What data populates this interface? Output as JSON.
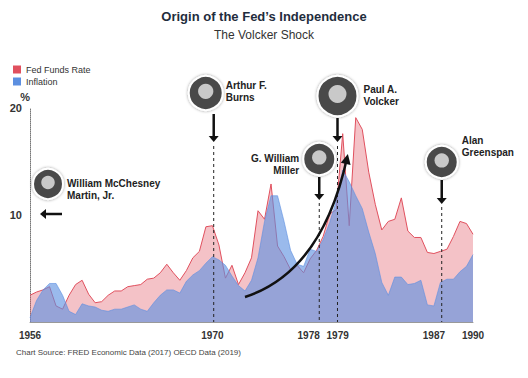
{
  "chart_data": {
    "type": "area",
    "title": "Origin of the Fed’s Independence",
    "subtitle": "The Volcker Shock",
    "ylabel": "%",
    "source": "Chart Source: FRED Economic Data (2017) OECD Data (2019)",
    "x": [
      1956,
      1956.5,
      1957,
      1957.5,
      1958,
      1958.5,
      1959,
      1959.5,
      1960,
      1960.5,
      1961,
      1961.5,
      1962,
      1962.5,
      1963,
      1963.5,
      1964,
      1964.5,
      1965,
      1965.5,
      1966,
      1966.5,
      1967,
      1967.5,
      1968,
      1968.5,
      1969,
      1969.5,
      1970,
      1970.5,
      1971,
      1971.5,
      1972,
      1972.5,
      1973,
      1973.5,
      1974,
      1974.5,
      1975,
      1975.5,
      1976,
      1976.5,
      1977,
      1977.5,
      1978,
      1978.5,
      1979,
      1979.5,
      1980,
      1980.5,
      1981,
      1981.5,
      1982,
      1982.5,
      1983,
      1983.5,
      1984,
      1984.5,
      1985,
      1985.5,
      1986,
      1986.5,
      1987,
      1987.5,
      1988,
      1988.5,
      1989,
      1989.5,
      1990
    ],
    "series": [
      {
        "name": "Fed Funds Rate",
        "color": "#e0505e",
        "values": [
          2.5,
          2.8,
          3.0,
          3.3,
          1.5,
          1.2,
          2.5,
          3.5,
          3.9,
          2.6,
          1.8,
          1.9,
          2.5,
          2.9,
          2.9,
          3.3,
          3.4,
          3.5,
          4.0,
          4.1,
          4.6,
          5.4,
          4.6,
          3.9,
          4.8,
          6.0,
          6.6,
          8.9,
          9.0,
          7.2,
          4.1,
          5.3,
          3.5,
          4.6,
          6.0,
          10.4,
          9.6,
          12.9,
          7.1,
          6.1,
          4.9,
          5.3,
          4.6,
          5.9,
          6.7,
          8.0,
          10.1,
          10.5,
          17.6,
          9.0,
          19.1,
          18.0,
          14.0,
          11.0,
          8.6,
          9.4,
          9.6,
          11.6,
          8.5,
          7.9,
          7.9,
          6.5,
          6.4,
          6.6,
          6.8,
          8.0,
          9.4,
          9.2,
          8.2
        ]
      },
      {
        "name": "Inflation",
        "color": "#5c8fe0",
        "values": [
          0.4,
          2.0,
          3.0,
          3.6,
          3.6,
          2.5,
          1.0,
          0.7,
          1.7,
          1.5,
          1.4,
          1.1,
          1.0,
          1.2,
          1.2,
          1.4,
          1.6,
          1.2,
          1.0,
          1.8,
          2.5,
          3.0,
          3.0,
          2.7,
          3.8,
          4.4,
          4.8,
          5.5,
          6.1,
          5.8,
          5.3,
          4.3,
          3.4,
          2.9,
          3.9,
          6.0,
          9.4,
          11.8,
          11.8,
          9.4,
          6.7,
          5.4,
          5.2,
          6.8,
          6.6,
          7.7,
          9.3,
          11.3,
          14.2,
          13.1,
          11.8,
          10.6,
          8.4,
          6.4,
          3.7,
          2.5,
          4.2,
          4.2,
          3.5,
          3.6,
          3.9,
          1.6,
          1.5,
          3.7,
          4.0,
          4.0,
          4.7,
          5.2,
          6.3
        ]
      }
    ],
    "xlim": [
      1956,
      1990
    ],
    "xticks": [
      1956,
      1970,
      1978,
      1979,
      1987,
      1990
    ],
    "ylim": [
      0,
      20
    ],
    "yticks": [
      10,
      20
    ],
    "grid": false,
    "legend": "top-left",
    "annotations": [
      {
        "text": "William McChesney\nMartin, Jr."
      },
      {
        "text": "Arthur F.\nBurns",
        "x": 1970.1
      },
      {
        "text": "G. William\nMiller",
        "x": 1978.2
      },
      {
        "text": "Paul A.\nVolcker",
        "x": 1979.6
      },
      {
        "text": "Alan\nGreenspan",
        "x": 1987.6
      }
    ]
  }
}
